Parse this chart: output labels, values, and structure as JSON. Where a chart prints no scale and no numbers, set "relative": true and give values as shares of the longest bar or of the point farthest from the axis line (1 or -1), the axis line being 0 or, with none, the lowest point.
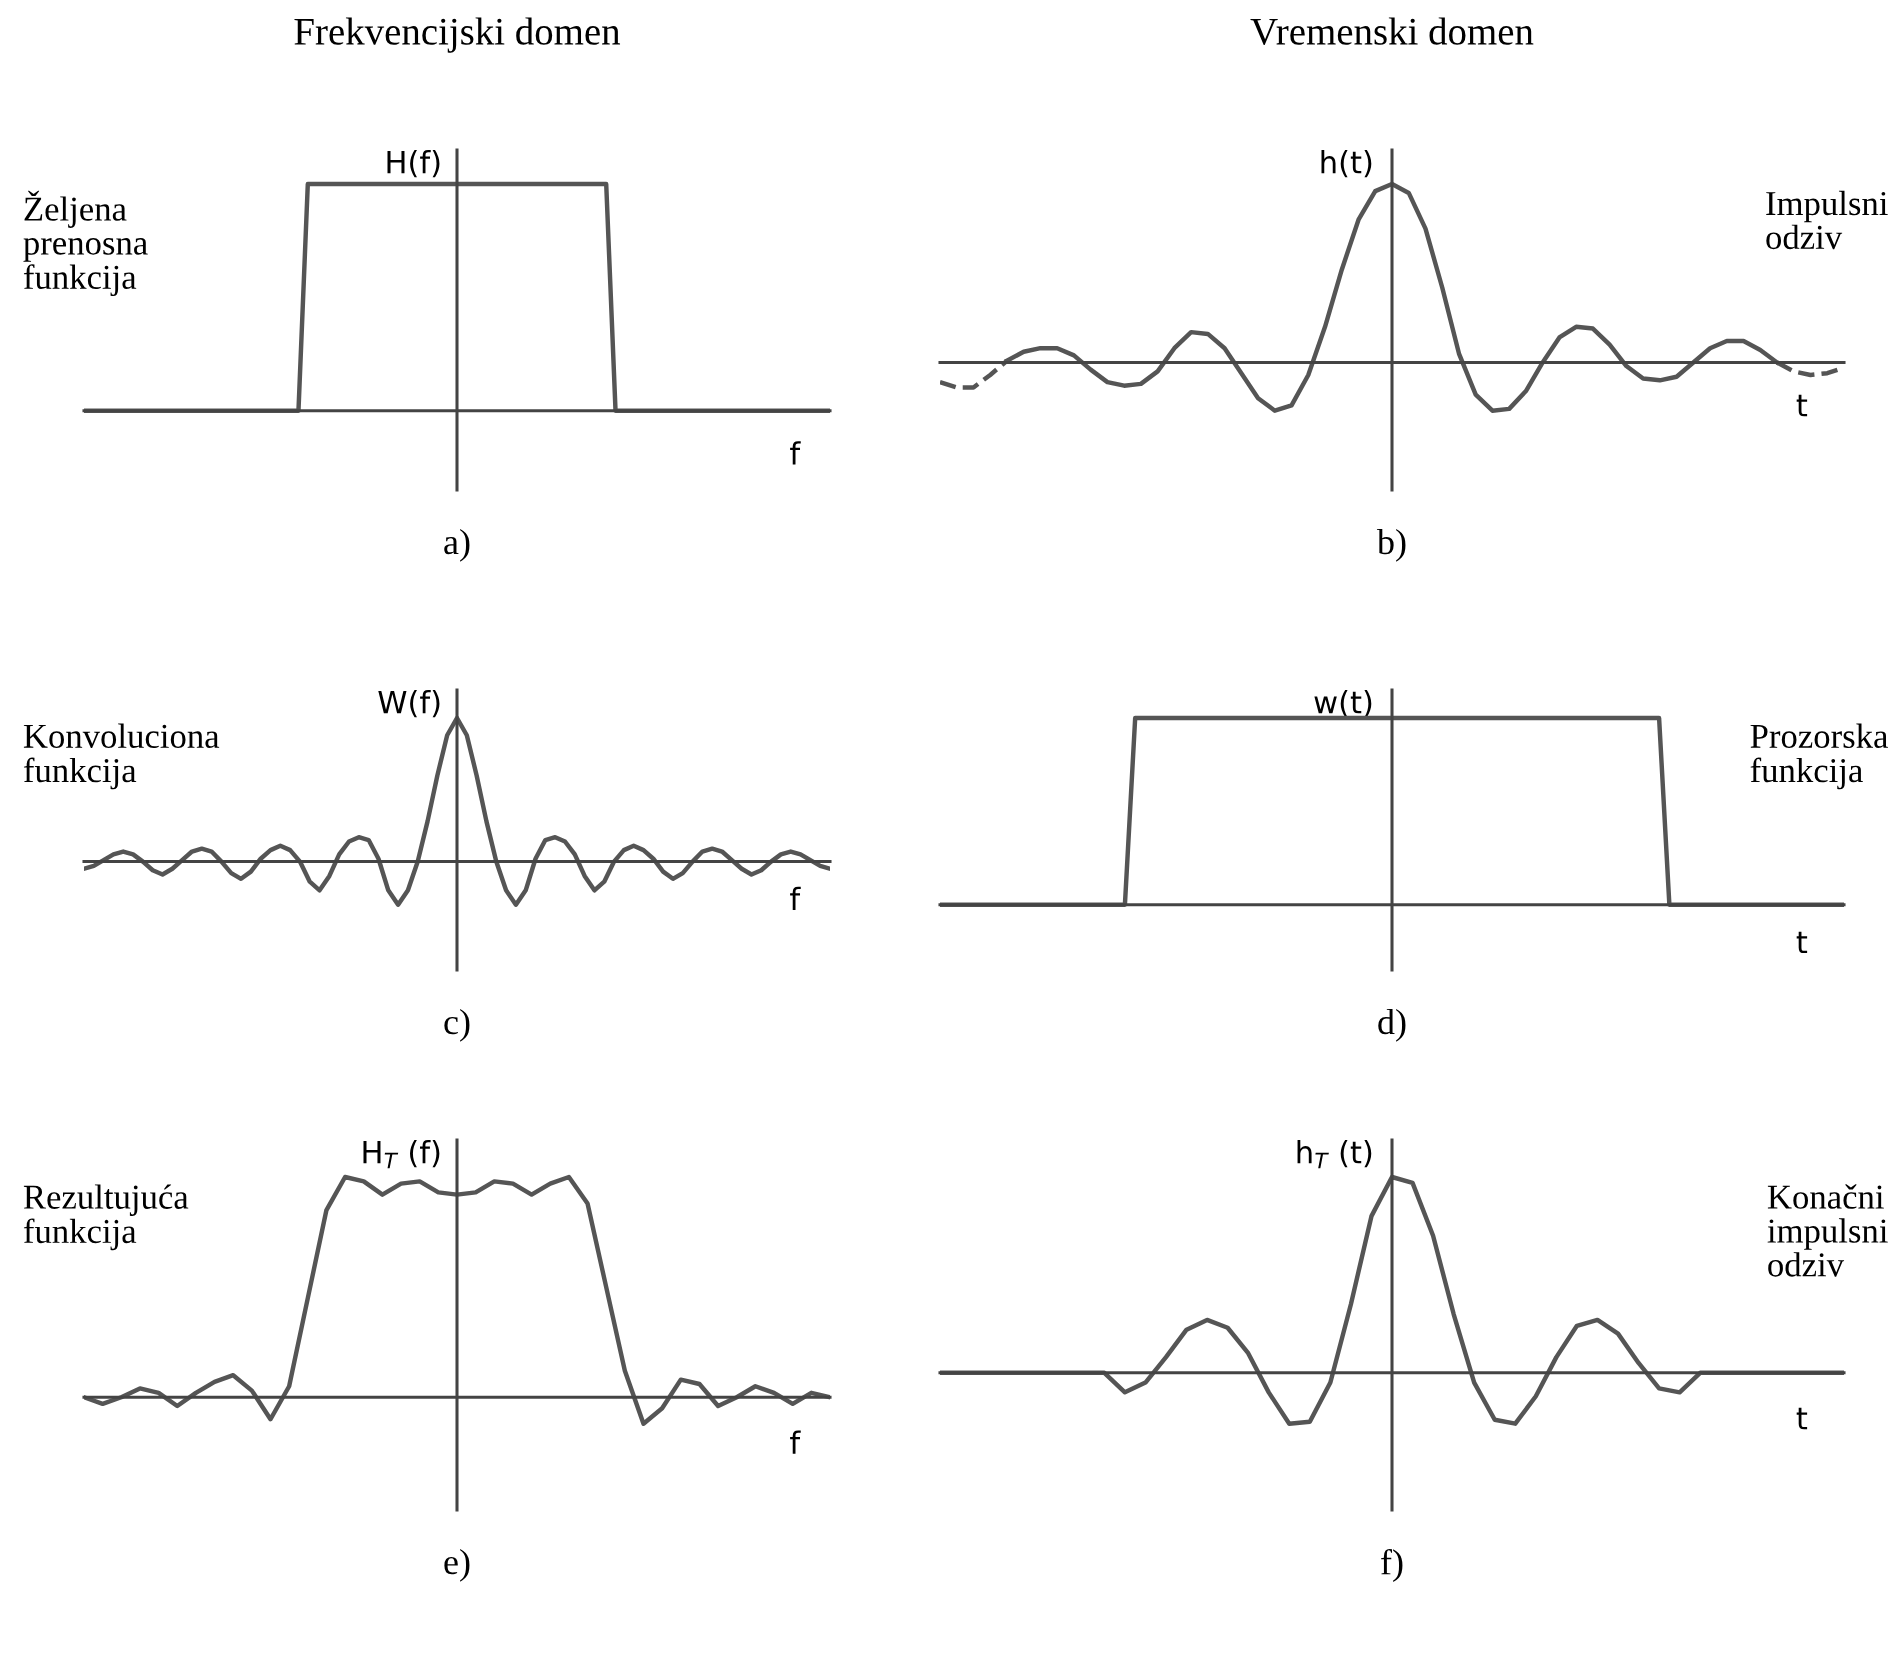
{
  "chart_data": [
    {
      "type": "line",
      "relative": true,
      "title": "Frekvencijski domen",
      "ylabel": "H(f)",
      "xlabel": "f",
      "annotations": [
        "Željena\nprenosna\nfunkcija",
        "a)"
      ],
      "categories": [
        null,
        null,
        null,
        null,
        null,
        null,
        null,
        null,
        null,
        null,
        null,
        null,
        null,
        null,
        null,
        null,
        null,
        null,
        null,
        null,
        null,
        null,
        null,
        null,
        null,
        null,
        null,
        null,
        null,
        null,
        null,
        null,
        null,
        null,
        null,
        null,
        null,
        null,
        null,
        null,
        null,
        null,
        null,
        null,
        null,
        null,
        null,
        null,
        null,
        null,
        null,
        null,
        null,
        null,
        null,
        null,
        null,
        null,
        null,
        null,
        null,
        null,
        null,
        null,
        null,
        null,
        null,
        null,
        null,
        null,
        null,
        null,
        null,
        null,
        null,
        null,
        null,
        null,
        null,
        null,
        null
      ],
      "series": [
        {
          "color": "#555555",
          "values": [
            0,
            0,
            0,
            0,
            0,
            0,
            0,
            0,
            0,
            0,
            0,
            0,
            0,
            0,
            0,
            0,
            0,
            0,
            0,
            0,
            0,
            0,
            0,
            0,
            1,
            1,
            1,
            1,
            1,
            1,
            1,
            1,
            1,
            1,
            1,
            1,
            1,
            1,
            1,
            1,
            1,
            1,
            1,
            1,
            1,
            1,
            1,
            1,
            1,
            1,
            1,
            1,
            1,
            1,
            1,
            1,
            1,
            0,
            0,
            0,
            0,
            0,
            0,
            0,
            0,
            0,
            0,
            0,
            0,
            0,
            0,
            0,
            0,
            0,
            0,
            0,
            0,
            0,
            0,
            0,
            0
          ]
        }
      ]
    },
    {
      "type": "line",
      "relative": true,
      "title": "Vremenski domen",
      "ylabel": "h(t)",
      "xlabel": "t",
      "annotations": [
        "Impulsni\nodziv",
        "b)"
      ],
      "categories": [
        null,
        null,
        null,
        null,
        null,
        null,
        null,
        null,
        null,
        null,
        null,
        null,
        null,
        null,
        null,
        null,
        null,
        null,
        null,
        null,
        null,
        null,
        null,
        null,
        null,
        null,
        null,
        null,
        null,
        null,
        null,
        null,
        null,
        null,
        null,
        null,
        null,
        null,
        null,
        null,
        null,
        null,
        null,
        null,
        null,
        null,
        null,
        null,
        null,
        null,
        null,
        null,
        null,
        null,
        null
      ],
      "series": [
        {
          "color": "#555555",
          "line_style": "solid",
          "values": [
            null,
            null,
            null,
            null,
            0.01,
            0.06,
            0.08,
            0.08,
            0.04,
            -0.04,
            -0.11,
            -0.13,
            -0.12,
            -0.05,
            0.08,
            0.17,
            0.16,
            0.08,
            -0.06,
            -0.2,
            -0.27,
            -0.24,
            -0.07,
            0.2,
            0.52,
            0.8,
            0.96,
            1,
            0.95,
            0.75,
            0.42,
            0.05,
            -0.18,
            -0.27,
            -0.26,
            -0.16,
            0.0,
            0.14,
            0.2,
            0.19,
            0.1,
            -0.02,
            -0.09,
            -0.1,
            -0.08,
            0.0,
            0.08,
            0.12,
            0.12,
            0.07,
            0.0,
            null,
            null,
            null,
            null
          ]
        },
        {
          "color": "#555555",
          "line_style": "dashed",
          "values": [
            -0.11,
            -0.14,
            -0.14,
            -0.07,
            0.01,
            null,
            null,
            null,
            null,
            null,
            null,
            null,
            null,
            null,
            null,
            null,
            null,
            null,
            null,
            null,
            null,
            null,
            null,
            null,
            null,
            null,
            null,
            null,
            null,
            null,
            null,
            null,
            null,
            null,
            null,
            null,
            null,
            null,
            null,
            null,
            null,
            null,
            null,
            null,
            null,
            null,
            null,
            null,
            null,
            null,
            0.0,
            -0.05,
            -0.07,
            -0.06,
            -0.03
          ]
        }
      ]
    },
    {
      "type": "line",
      "relative": true,
      "ylabel": "W(f)",
      "xlabel": "f",
      "annotations": [
        "Konvoluciona\nfunkcija",
        "c)"
      ],
      "categories": [
        null,
        null,
        null,
        null,
        null,
        null,
        null,
        null,
        null,
        null,
        null,
        null,
        null,
        null,
        null,
        null,
        null,
        null,
        null,
        null,
        null,
        null,
        null,
        null,
        null,
        null,
        null,
        null,
        null,
        null,
        null,
        null,
        null,
        null,
        null,
        null,
        null,
        null,
        null,
        null,
        null,
        null,
        null,
        null,
        null,
        null,
        null,
        null,
        null,
        null,
        null,
        null,
        null,
        null,
        null,
        null,
        null,
        null,
        null,
        null,
        null,
        null,
        null,
        null,
        null,
        null,
        null,
        null,
        null,
        null,
        null,
        null,
        null,
        null,
        null,
        null,
        null
      ],
      "series": [
        {
          "color": "#555555",
          "values": [
            -0.05,
            -0.03,
            0.01,
            0.05,
            0.07,
            0.05,
            0,
            -0.06,
            -0.09,
            -0.05,
            0.01,
            0.07,
            0.09,
            0.07,
            0,
            -0.08,
            -0.12,
            -0.07,
            0.02,
            0.08,
            0.11,
            0.08,
            0,
            -0.14,
            -0.2,
            -0.1,
            0.05,
            0.14,
            0.17,
            0.15,
            0.02,
            -0.2,
            -0.3,
            -0.2,
            0,
            0.28,
            0.6,
            0.88,
            1,
            0.88,
            0.6,
            0.28,
            0,
            -0.2,
            -0.3,
            -0.2,
            0.02,
            0.15,
            0.17,
            0.14,
            0.05,
            -0.1,
            -0.2,
            -0.14,
            0,
            0.08,
            0.11,
            0.08,
            0.02,
            -0.07,
            -0.12,
            -0.08,
            0,
            0.07,
            0.09,
            0.07,
            0.01,
            -0.05,
            -0.09,
            -0.06,
            0,
            0.05,
            0.07,
            0.05,
            0.01,
            -0.03,
            -0.05
          ]
        }
      ]
    },
    {
      "type": "line",
      "relative": true,
      "ylabel": "w(t)",
      "xlabel": "t",
      "annotations": [
        "Prozorska\nfunkcija",
        "d)"
      ],
      "categories": [
        null,
        null,
        null,
        null,
        null,
        null,
        null,
        null,
        null,
        null,
        null,
        null,
        null,
        null,
        null,
        null,
        null,
        null,
        null,
        null,
        null,
        null,
        null,
        null,
        null,
        null,
        null,
        null,
        null,
        null,
        null,
        null,
        null,
        null,
        null,
        null,
        null,
        null,
        null,
        null,
        null,
        null,
        null,
        null,
        null,
        null,
        null,
        null,
        null,
        null,
        null,
        null,
        null,
        null,
        null,
        null,
        null,
        null,
        null,
        null,
        null,
        null,
        null,
        null,
        null,
        null,
        null,
        null,
        null,
        null,
        null,
        null,
        null,
        null,
        null,
        null,
        null,
        null,
        null,
        null,
        null,
        null,
        null,
        null,
        null,
        null,
        null,
        null,
        null
      ],
      "series": [
        {
          "color": "#555555",
          "values": [
            0,
            0,
            0,
            0,
            0,
            0,
            0,
            0,
            0,
            0,
            0,
            0,
            0,
            0,
            0,
            0,
            0,
            0,
            0,
            1,
            1,
            1,
            1,
            1,
            1,
            1,
            1,
            1,
            1,
            1,
            1,
            1,
            1,
            1,
            1,
            1,
            1,
            1,
            1,
            1,
            1,
            1,
            1,
            1,
            1,
            1,
            1,
            1,
            1,
            1,
            1,
            1,
            1,
            1,
            1,
            1,
            1,
            1,
            1,
            1,
            1,
            1,
            1,
            1,
            1,
            1,
            1,
            1,
            1,
            1,
            1,
            0,
            0,
            0,
            0,
            0,
            0,
            0,
            0,
            0,
            0,
            0,
            0,
            0,
            0,
            0,
            0,
            0,
            0
          ]
        }
      ]
    },
    {
      "type": "line",
      "relative": true,
      "ylabel": "H$_{T}$ (f)",
      "xlabel": "f",
      "annotations": [
        "Rezultujuća\nfunkcija",
        "e)"
      ],
      "categories": [
        null,
        null,
        null,
        null,
        null,
        null,
        null,
        null,
        null,
        null,
        null,
        null,
        null,
        null,
        null,
        null,
        null,
        null,
        null,
        null,
        null,
        null,
        null,
        null,
        null,
        null,
        null,
        null,
        null,
        null,
        null,
        null,
        null,
        null,
        null,
        null,
        null,
        null,
        null,
        null,
        null
      ],
      "series": [
        {
          "color": "#555555",
          "values": [
            0.0,
            -0.03,
            0.0,
            0.04,
            0.02,
            -0.04,
            0.02,
            0.07,
            0.1,
            0.03,
            -0.1,
            0.05,
            0.45,
            0.85,
            1.0,
            0.98,
            0.92,
            0.97,
            0.98,
            0.93,
            0.92,
            0.93,
            0.98,
            0.97,
            0.92,
            0.97,
            1.0,
            0.88,
            0.5,
            0.12,
            -0.12,
            -0.05,
            0.08,
            0.06,
            -0.04,
            0.0,
            0.05,
            0.02,
            -0.03,
            0.02,
            0.0
          ]
        }
      ]
    },
    {
      "type": "line",
      "relative": true,
      "ylabel": "h$_{T}$ (t)",
      "xlabel": "t",
      "annotations": [
        "Konačni\nimpulsni\nodziv",
        "f)"
      ],
      "categories": [
        null,
        null,
        null,
        null,
        null,
        null,
        null,
        null,
        null,
        null,
        null,
        null,
        null,
        null,
        null,
        null,
        null,
        null,
        null,
        null,
        null,
        null,
        null,
        null,
        null,
        null,
        null,
        null,
        null,
        null,
        null,
        null,
        null,
        null,
        null,
        null,
        null,
        null,
        null,
        null,
        null,
        null,
        null,
        null,
        null
      ],
      "series": [
        {
          "color": "#555555",
          "values": [
            0,
            0,
            0,
            0,
            0,
            0,
            0,
            0,
            0,
            -0.1,
            -0.05,
            0.08,
            0.22,
            0.27,
            0.23,
            0.1,
            -0.1,
            -0.26,
            -0.25,
            -0.05,
            0.35,
            0.8,
            1.0,
            0.97,
            0.7,
            0.3,
            -0.05,
            -0.24,
            -0.26,
            -0.12,
            0.08,
            0.24,
            0.27,
            0.2,
            0.05,
            -0.08,
            -0.1,
            0,
            0,
            0,
            0,
            0,
            0,
            0,
            0
          ]
        }
      ]
    }
  ]
}
